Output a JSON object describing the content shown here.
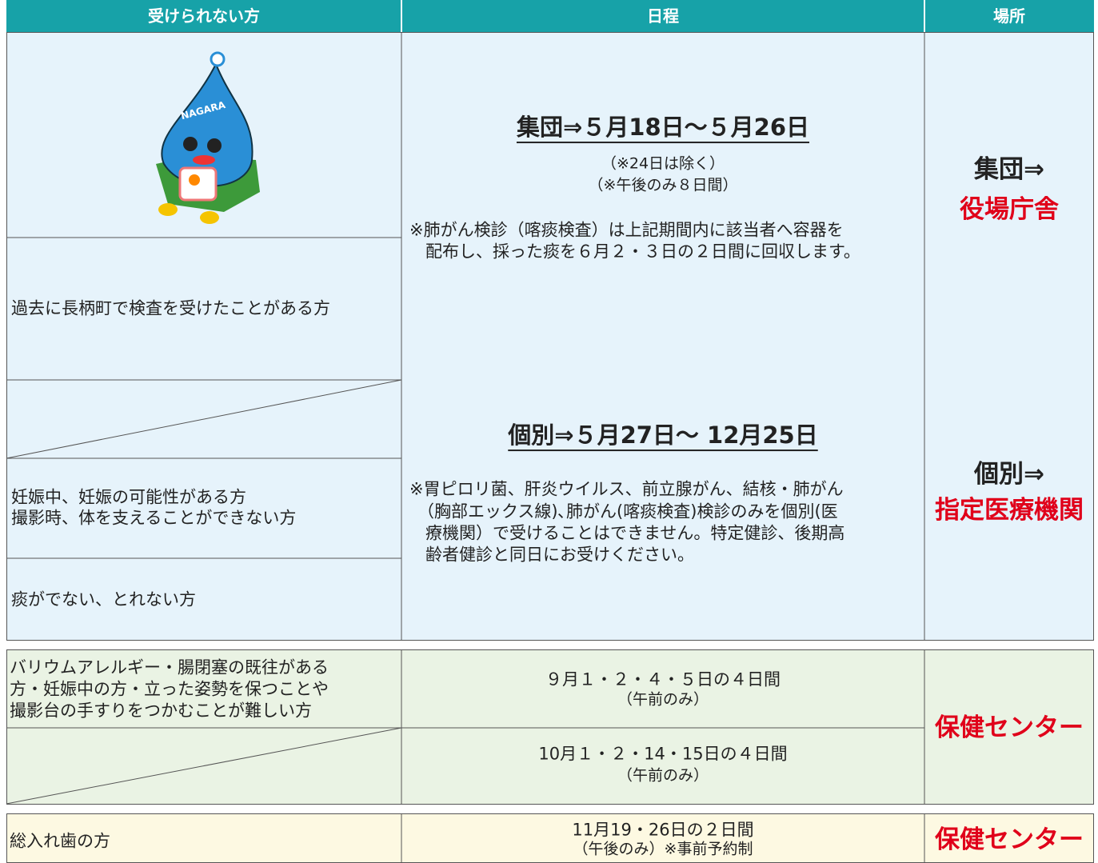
{
  "header": {
    "columns": [
      "受けられない方",
      "日程",
      "場所"
    ]
  },
  "mascot": {
    "label": "NAGARA"
  },
  "section1": {
    "exclusions": [
      [
        "過去に長柄町で検査を受けたことがある方"
      ],
      [
        "妊娠中、妊娠の可能性がある方",
        "撮影時、体を支えることができない方"
      ],
      [
        "痰がでない、とれない方"
      ]
    ],
    "group": {
      "heading": "集団⇒５月18日～５月26日",
      "notes": [
        "（※24日は除く）",
        "（※午後のみ８日間）"
      ],
      "remark": [
        "※肺がん検診（喀痰検査）は上記期間内に該当者へ容器を",
        "配布し、採った痰を６月２・３日の２日間に回収します。"
      ]
    },
    "individual": {
      "heading": "個別⇒５月27日～ 12月25日",
      "remark": [
        "※胃ピロリ菌、肝炎ウイルス、前立腺がん、結核・肺がん",
        "（胸部エックス線)､肺がん(喀痰検査)検診のみを個別(医",
        "療機関）で受けることはできません。特定健診、後期高",
        "齢者健診と同日にお受けください。"
      ]
    },
    "places": [
      {
        "label": "集団⇒",
        "name": "役場庁舎"
      },
      {
        "label": "個別⇒",
        "name": "指定医療機関"
      }
    ]
  },
  "section2": {
    "exclusion": [
      "バリウムアレルギー・腸閉塞の既往がある",
      "方・妊娠中の方・立った姿勢を保つことや",
      "撮影台の手すりをつかむことが難しい方"
    ],
    "schedules": [
      [
        "９月１・２・４・５日の４日間",
        "（午前のみ）"
      ],
      [
        "10月１・２・14・15日の４日間",
        "（午前のみ）"
      ]
    ],
    "place": "保健センター"
  },
  "section3": {
    "exclusion": "総入れ歯の方",
    "schedule": [
      "11月19・26日の２日間",
      "（午後のみ）※事前予約制"
    ],
    "place": "保健センター"
  }
}
